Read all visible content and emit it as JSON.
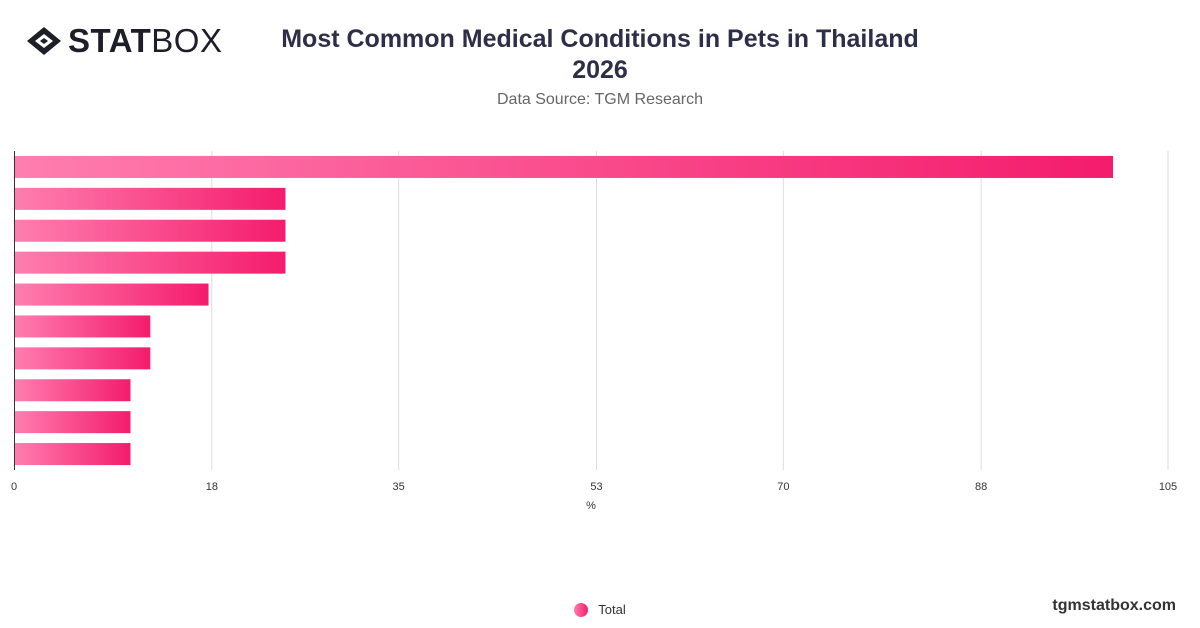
{
  "brand": {
    "logo_bold": "STAT",
    "logo_light": "BOX"
  },
  "title_line1": "Most Common Medical Conditions in Pets in Thailand",
  "title_line2": "2026",
  "subtitle": "Data Source: TGM Research",
  "footer": "tgmstatbox.com",
  "colors": {
    "bar_start": "#ff7eb0",
    "bar_end": "#f41c6c",
    "grid": "#dddddd",
    "axis": "#333333"
  },
  "chart_data": {
    "type": "bar",
    "orientation": "horizontal",
    "categories": [
      "",
      "",
      "",
      "",
      "",
      "",
      "",
      "",
      "",
      ""
    ],
    "series": [
      {
        "name": "Total",
        "values": [
          100,
          24.7,
          24.7,
          24.7,
          17.7,
          12.4,
          12.4,
          10.6,
          10.6,
          10.6
        ]
      }
    ],
    "xlabel": "%",
    "xlim": [
      0,
      105
    ],
    "xticks": [
      0,
      18,
      35,
      53,
      70,
      88,
      105
    ],
    "grid": true,
    "legend": "bottom-center"
  }
}
